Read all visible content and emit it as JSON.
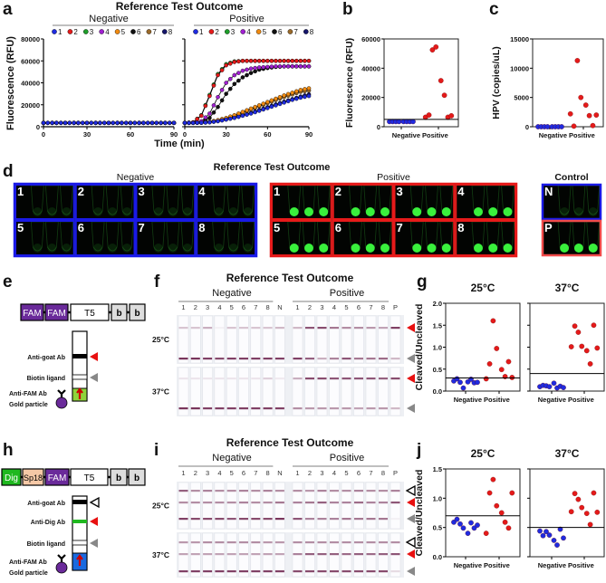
{
  "panel_labels": {
    "a": "a",
    "b": "b",
    "c": "c",
    "d": "d",
    "e": "e",
    "f": "f",
    "g": "g",
    "h": "h",
    "i": "i",
    "j": "j"
  },
  "chart_data": [
    {
      "panel": "a",
      "type": "line",
      "title": "Reference Test Outcome",
      "xlabel": "Time (min)",
      "ylabel": "Fluorescence (RFU)",
      "xlim": [
        0,
        90
      ],
      "ylim": [
        0,
        80000
      ],
      "xticks": [
        "0",
        "30",
        "60",
        "90"
      ],
      "yticks": [
        "0",
        "20000",
        "40000",
        "60000",
        "80000"
      ],
      "x": [
        0,
        6,
        12,
        18,
        24,
        30,
        36,
        42,
        48,
        54,
        60,
        66,
        72,
        78,
        84,
        90
      ],
      "groups": [
        {
          "name": "Negative",
          "series": [
            {
              "name": "1",
              "color": "#1f2be0",
              "values": [
                3500,
                3500,
                3500,
                3500,
                3500,
                3500,
                3500,
                3500,
                3500,
                3500,
                3500,
                3500,
                3500,
                3500,
                3500,
                3500
              ]
            },
            {
              "name": "2",
              "color": "#e41a1a",
              "values": [
                3500,
                3500,
                3500,
                3500,
                3500,
                3500,
                3500,
                3500,
                3500,
                3500,
                3500,
                3500,
                3500,
                3500,
                3500,
                3500
              ]
            },
            {
              "name": "3",
              "color": "#1e9e2a",
              "values": [
                3500,
                3500,
                3500,
                3500,
                3500,
                3500,
                3500,
                3500,
                3500,
                3500,
                3500,
                3500,
                3500,
                3500,
                3500,
                3500
              ]
            },
            {
              "name": "4",
              "color": "#a020d0",
              "values": [
                3500,
                3500,
                3500,
                3500,
                3500,
                3500,
                3500,
                3500,
                3500,
                3500,
                3500,
                3500,
                3500,
                3500,
                3500,
                3500
              ]
            },
            {
              "name": "5",
              "color": "#f08a10",
              "values": [
                3500,
                3500,
                3500,
                3500,
                3500,
                3500,
                3500,
                3500,
                3500,
                3500,
                3500,
                3500,
                3500,
                3500,
                3500,
                3500
              ]
            },
            {
              "name": "6",
              "color": "#111111",
              "values": [
                3500,
                3500,
                3500,
                3500,
                3500,
                3500,
                3500,
                3500,
                3500,
                3500,
                3500,
                3500,
                3500,
                3500,
                3500,
                3500
              ]
            },
            {
              "name": "7",
              "color": "#9a6a2a",
              "values": [
                3500,
                3500,
                3500,
                3500,
                3500,
                3500,
                3500,
                3500,
                3500,
                3500,
                3500,
                3500,
                3500,
                3500,
                3500,
                3500
              ]
            },
            {
              "name": "8",
              "color": "#15156a",
              "values": [
                3500,
                3500,
                3500,
                3500,
                3500,
                3500,
                3500,
                3500,
                3500,
                3500,
                3500,
                3500,
                3500,
                3500,
                3500,
                3500
              ]
            }
          ]
        },
        {
          "name": "Positive",
          "series": [
            {
              "name": "1",
              "color": "#1f2be0",
              "values": [
                3500,
                3500,
                3600,
                4000,
                5000,
                6500,
                8000,
                10000,
                12000,
                14500,
                17000,
                19500,
                22000,
                24500,
                26500,
                28000
              ]
            },
            {
              "name": "2",
              "color": "#e41a1a",
              "values": [
                3500,
                4000,
                10000,
                28000,
                47000,
                56000,
                59000,
                60000,
                60000,
                60000,
                60000,
                60000,
                60000,
                60000,
                60000,
                60000
              ]
            },
            {
              "name": "3",
              "color": "#1e9e2a",
              "values": [
                3500,
                4000,
                10500,
                29000,
                48000,
                57000,
                59500,
                60000,
                60000,
                60000,
                60000,
                60000,
                60000,
                60000,
                60000,
                60000
              ]
            },
            {
              "name": "4",
              "color": "#a020d0",
              "values": [
                3500,
                3600,
                5000,
                12000,
                27000,
                40000,
                47000,
                51000,
                53000,
                54000,
                54500,
                55000,
                55000,
                55000,
                55000,
                55000
              ]
            },
            {
              "name": "5",
              "color": "#f08a10",
              "values": [
                3500,
                3500,
                3800,
                4500,
                6000,
                8000,
                10500,
                13500,
                16500,
                19500,
                22500,
                25500,
                28500,
                31000,
                33500,
                35000
              ]
            },
            {
              "name": "6",
              "color": "#111111",
              "values": [
                3500,
                3500,
                4000,
                8000,
                18000,
                30000,
                39000,
                45000,
                49000,
                52000,
                53500,
                54500,
                55000,
                55000,
                55000,
                55000
              ]
            },
            {
              "name": "7",
              "color": "#9a6a2a",
              "values": [
                3500,
                3500,
                3700,
                4300,
                5600,
                7500,
                10000,
                12800,
                15800,
                18700,
                21500,
                24300,
                27000,
                29500,
                31800,
                33000
              ]
            },
            {
              "name": "8",
              "color": "#15156a",
              "values": [
                3500,
                3500,
                3600,
                4100,
                5200,
                6800,
                8500,
                10500,
                12700,
                15200,
                17800,
                20300,
                22800,
                25200,
                27500,
                29500
              ]
            }
          ]
        }
      ]
    },
    {
      "panel": "b",
      "type": "scatter",
      "ylabel": "Fluorescence (RFU)",
      "ylim": [
        0,
        60000
      ],
      "yticks": [
        "0",
        "20000",
        "40000",
        "60000"
      ],
      "categories": [
        "Negative",
        "Positive"
      ],
      "values": [
        [
          3500,
          3500,
          3500,
          3500,
          3500,
          3500,
          3500,
          3500
        ],
        [
          6500,
          8000,
          52500,
          54500,
          31500,
          21500,
          6500,
          7500
        ]
      ],
      "colors": [
        "#1f2be0",
        "#e41a1a"
      ],
      "threshold": 5000
    },
    {
      "panel": "c",
      "type": "scatter",
      "ylabel": "HPV (copies/uL)",
      "ylim": [
        0,
        15000
      ],
      "yticks": [
        "0",
        "5000",
        "10000",
        "15000"
      ],
      "categories": [
        "Negative",
        "Positive"
      ],
      "values": [
        [
          0,
          0,
          0,
          0,
          0,
          0,
          0,
          0
        ],
        [
          2200,
          100,
          11300,
          5000,
          3700,
          1900,
          200,
          2000
        ]
      ],
      "colors": [
        "#1f2be0",
        "#e41a1a"
      ]
    },
    {
      "panel": "g",
      "type": "scatter",
      "title": "25°C",
      "ylabel": "Cleaved/Uncleaved",
      "ylim": [
        0,
        2.0
      ],
      "yticks": [
        "0.0",
        "0.5",
        "1.0",
        "1.5",
        "2.0"
      ],
      "categories": [
        "Negative",
        "Positive"
      ],
      "values": [
        [
          0.23,
          0.28,
          0.2,
          0.07,
          0.21,
          0.27,
          0.19,
          0.2
        ],
        [
          0.28,
          0.62,
          1.6,
          0.97,
          0.49,
          0.33,
          0.67,
          0.31
        ]
      ],
      "colors": [
        "#1f2be0",
        "#e41a1a"
      ],
      "threshold": 0.3
    },
    {
      "panel": "g",
      "type": "scatter",
      "title": "37°C",
      "ylim": [
        0,
        2.0
      ],
      "categories": [
        "Negative",
        "Positive"
      ],
      "values": [
        [
          0.1,
          0.13,
          0.12,
          0.1,
          0.18,
          0.07,
          0.11,
          0.08
        ],
        [
          1.01,
          1.48,
          1.34,
          1.02,
          0.92,
          0.62,
          1.5,
          0.98
        ]
      ],
      "colors": [
        "#1f2be0",
        "#e41a1a"
      ],
      "threshold": 0.4
    },
    {
      "panel": "j",
      "type": "scatter",
      "title": "25°C",
      "ylabel": "Cleaved/Uncleaved",
      "ylim": [
        0,
        1.5
      ],
      "yticks": [
        "0.0",
        "0.5",
        "1.0",
        "1.5"
      ],
      "categories": [
        "Negative",
        "Positive"
      ],
      "values": [
        [
          0.59,
          0.64,
          0.56,
          0.49,
          0.4,
          0.58,
          0.49,
          0.54
        ],
        [
          0.4,
          1.09,
          1.32,
          0.87,
          0.75,
          0.59,
          0.49,
          1.09
        ]
      ],
      "colors": [
        "#1f2be0",
        "#e41a1a"
      ],
      "threshold": 0.7
    },
    {
      "panel": "j",
      "type": "scatter",
      "title": "37°C",
      "ylim": [
        0,
        1.5
      ],
      "categories": [
        "Negative",
        "Positive"
      ],
      "values": [
        [
          0.44,
          0.36,
          0.43,
          0.37,
          0.28,
          0.2,
          0.47,
          0.32
        ],
        [
          0.77,
          1.08,
          0.98,
          0.84,
          0.74,
          0.55,
          1.09,
          0.76
        ]
      ],
      "colors": [
        "#1f2be0",
        "#e41a1a"
      ],
      "threshold": 0.5
    }
  ],
  "panel_d": {
    "title": "Reference Test Outcome",
    "groups": [
      {
        "name": "Negative",
        "color": "#1a1ae6",
        "tiles": [
          "1",
          "2",
          "3",
          "4",
          "5",
          "6",
          "7",
          "8"
        ],
        "glow": 0.12
      },
      {
        "name": "Positive",
        "color": "#e61a1a",
        "tiles": [
          "1",
          "2",
          "3",
          "4",
          "5",
          "6",
          "7",
          "8"
        ],
        "glow": 1.0
      }
    ],
    "control": {
      "name": "Control",
      "tiles": [
        {
          "label": "N",
          "color": "#1a1ae6",
          "glow": 0.12
        },
        {
          "label": "P",
          "color": "#f04a4a",
          "glow": 1.0
        }
      ]
    },
    "tube_color": "#39f03c"
  },
  "panel_e": {
    "reporter": [
      "FAM",
      "FAM",
      "T5",
      "b",
      "b"
    ],
    "labels": {
      "anti_goat": "Anti-goat Ab",
      "biotin": "Biotin ligand",
      "anti_fam": "Anti-FAM Ab",
      "gold": "Gold particle"
    }
  },
  "panel_h": {
    "reporter": [
      "Dig",
      "Sp18",
      "FAM",
      "T5",
      "b",
      "b"
    ],
    "labels": {
      "anti_goat": "Anti-goat Ab",
      "anti_dig": "Anti-Dig Ab",
      "biotin": "Biotin ligand",
      "anti_fam": "Anti-FAM Ab",
      "gold": "Gold particle"
    }
  },
  "panel_f": {
    "title": "Reference Test Outcome",
    "groups": [
      {
        "name": "Negative",
        "lanes": [
          "1",
          "2",
          "3",
          "4",
          "5",
          "6",
          "7",
          "8",
          "N"
        ]
      },
      {
        "name": "Positive",
        "lanes": [
          "1",
          "2",
          "3",
          "4",
          "5",
          "6",
          "7",
          "8",
          "P"
        ]
      }
    ],
    "rows": [
      {
        "label": "25°C",
        "bands": [
          [
            [
              0.25,
              0.25,
              0.35,
              0.05,
              0.25,
              0.25,
              0.25,
              0.25,
              0.3
            ],
            [
              0.3,
              0.75,
              0.8,
              0.6,
              0.5,
              0.5,
              0.45,
              0.4,
              0.85
            ]
          ],
          [
            [
              0.9,
              0.9,
              0.85,
              0.8,
              0.85,
              0.85,
              0.85,
              0.85,
              0.85
            ],
            [
              0.85,
              0.7,
              0.35,
              0.55,
              0.75,
              0.6,
              0.6,
              0.65,
              0.3
            ]
          ]
        ]
      },
      {
        "label": "37°C",
        "bands": [
          [
            [
              0.1,
              0.1,
              0.1,
              0.1,
              0.1,
              0.1,
              0.1,
              0.2,
              0.08
            ],
            [
              0.35,
              0.8,
              0.8,
              0.75,
              0.75,
              0.75,
              0.75,
              0.7,
              0.8
            ]
          ],
          [
            [
              0.9,
              0.9,
              0.85,
              0.85,
              0.85,
              0.85,
              0.85,
              0.85,
              0.85
            ],
            [
              0.5,
              0.45,
              0.45,
              0.45,
              0.45,
              0.4,
              0.45,
              0.45,
              0.3
            ]
          ]
        ]
      }
    ]
  },
  "panel_i": {
    "title": "Reference Test Outcome",
    "groups": [
      {
        "name": "Negative",
        "lanes": [
          "1",
          "2",
          "3",
          "4",
          "5",
          "6",
          "7",
          "8",
          "N"
        ]
      },
      {
        "name": "Positive",
        "lanes": [
          "1",
          "2",
          "3",
          "4",
          "5",
          "6",
          "7",
          "8",
          "P"
        ]
      }
    ],
    "rows": [
      {
        "label": "25°C",
        "bands": [
          [
            [
              0.7,
              0.5,
              0.55,
              0.5,
              0.5,
              0.55,
              0.5,
              0.55,
              0.5
            ],
            [
              0.5,
              0.45,
              0.55,
              0.5,
              0.5,
              0.55,
              0.5,
              0.5,
              0.55
            ]
          ],
          [
            [
              0.5,
              0.5,
              0.5,
              0.5,
              0.5,
              0.55,
              0.5,
              0.5,
              0.6
            ],
            [
              0.55,
              0.6,
              0.7,
              0.55,
              0.55,
              0.65,
              0.55,
              0.55,
              0.75
            ]
          ],
          [
            [
              0.85,
              0.8,
              0.8,
              0.8,
              0.75,
              0.8,
              0.8,
              0.8,
              0.9
            ],
            [
              0.75,
              0.55,
              0.55,
              0.55,
              0.6,
              0.6,
              0.6,
              0.6,
              0.05
            ]
          ]
        ]
      },
      {
        "label": "37°C",
        "bands": [
          [
            [
              0.45,
              0.45,
              0.5,
              0.5,
              0.5,
              0.5,
              0.5,
              0.45,
              0.45
            ],
            [
              0.5,
              0.5,
              0.5,
              0.5,
              0.5,
              0.5,
              0.5,
              0.5,
              0.5
            ]
          ],
          [
            [
              0.4,
              0.4,
              0.4,
              0.4,
              0.4,
              0.4,
              0.4,
              0.4,
              0.4
            ],
            [
              0.55,
              0.7,
              0.7,
              0.7,
              0.65,
              0.7,
              0.65,
              0.7,
              0.75
            ]
          ],
          [
            [
              0.85,
              0.85,
              0.85,
              0.85,
              0.85,
              0.85,
              0.85,
              0.85,
              0.85
            ],
            [
              0.8,
              0.8,
              0.8,
              0.8,
              0.8,
              0.8,
              0.8,
              0.8,
              0.15
            ]
          ]
        ]
      }
    ]
  }
}
